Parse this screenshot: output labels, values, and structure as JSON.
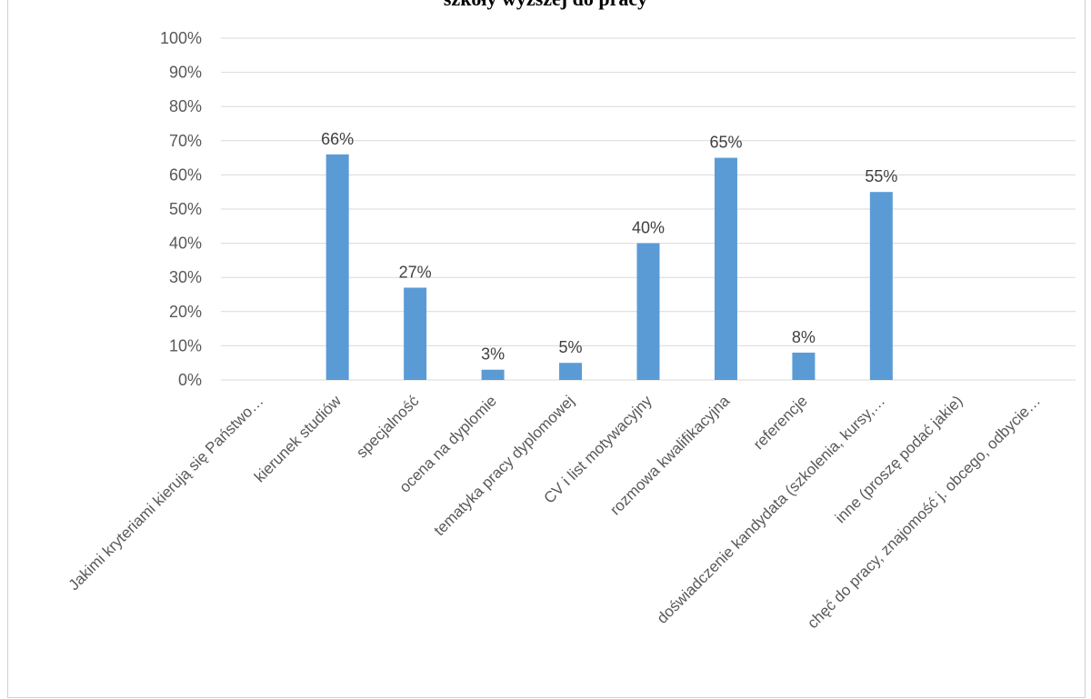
{
  "chart_data": {
    "type": "bar",
    "title": "szkoły wyższej do pracy",
    "categories": [
      "Jakimi kryteriami kierują się Państwo…",
      "kierunek studiów",
      "specjalność",
      "ocena na dyplomie",
      "tematyka pracy dyplomowej",
      "CV i list motywacyjny",
      "rozmowa kwalifikacyjna",
      "referencje",
      "doświadczenie kandydata (szkolenia, kursy,…",
      "inne (proszę podać jakie)",
      "chęć do pracy, znajomość j. obcego, odbycie…"
    ],
    "values": [
      null,
      0.66,
      0.27,
      0.03,
      0.05,
      0.4,
      0.65,
      0.08,
      0.55,
      null,
      null
    ],
    "data_labels": [
      "",
      "66%",
      "27%",
      "3%",
      "5%",
      "40%",
      "65%",
      "8%",
      "55%",
      "",
      ""
    ],
    "y_ticks": [
      "0%",
      "10%",
      "20%",
      "30%",
      "40%",
      "50%",
      "60%",
      "70%",
      "80%",
      "90%",
      "100%"
    ],
    "ylim": [
      0,
      1
    ],
    "grid": true,
    "legend": "none",
    "bar_color": "#5b9bd5",
    "grid_color": "#d9d9d9"
  }
}
